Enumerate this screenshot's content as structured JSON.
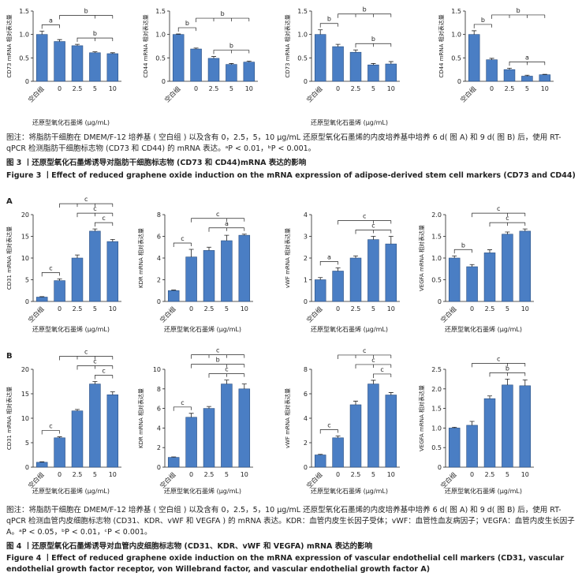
{
  "chart_data": [
    {
      "type": "bar",
      "ylabel": "CD73 mRNA 相对表达量",
      "xlabel": "还原型氧化石墨烯 (μg/mL)",
      "categories": [
        "空白组",
        "0",
        "2.5",
        "5",
        "10"
      ],
      "values": [
        1.0,
        0.85,
        0.76,
        0.61,
        0.59
      ],
      "errors": [
        0.07,
        0.04,
        0.03,
        0.02,
        0.02
      ],
      "color": "#4a7ec4",
      "ylim": [
        0,
        1.5
      ],
      "yticks": [
        0,
        0.5,
        {
          "value": 1,
          "label": "1.0"
        },
        1.5
      ],
      "annotations": [
        {
          "text": "a",
          "from": 0,
          "to": [
            1
          ]
        },
        {
          "text": "b",
          "from": 2,
          "to": [
            3,
            4
          ]
        },
        {
          "text": "b",
          "from": 1,
          "to": [
            3,
            4
          ]
        }
      ]
    },
    {
      "type": "bar",
      "ylabel": "CD44 mRNA 相对表达量",
      "categories": [
        "空白组",
        "0",
        "2.5",
        "5",
        "10"
      ],
      "values": [
        1.0,
        0.69,
        0.49,
        0.36,
        0.41
      ],
      "errors": [
        0.01,
        0.02,
        0.04,
        0.02,
        0.02
      ],
      "color": "#4a7ec4",
      "ylim": [
        0,
        1.5
      ],
      "yticks": [
        0,
        0.5,
        {
          "value": 1,
          "label": "1.0"
        },
        1.5
      ],
      "annotations": [
        {
          "text": "b",
          "from": 0,
          "to": [
            1
          ]
        },
        {
          "text": "b",
          "from": 2,
          "to": [
            3,
            4
          ]
        },
        {
          "text": "b",
          "from": 1,
          "to": [
            2,
            3,
            4
          ]
        }
      ]
    },
    {
      "type": "bar",
      "ylabel": "CD73 mRNA 相对表达量",
      "xlabel": "还原型氧化石墨烯 (μg/mL)",
      "categories": [
        "空白组",
        "0",
        "2.5",
        "5",
        "10"
      ],
      "values": [
        1.0,
        0.74,
        0.62,
        0.35,
        0.37
      ],
      "errors": [
        0.1,
        0.05,
        0.05,
        0.03,
        0.05
      ],
      "color": "#4a7ec4",
      "ylim": [
        0,
        1.5
      ],
      "yticks": [
        0,
        0.5,
        {
          "value": 1,
          "label": "1.0"
        },
        1.5
      ],
      "annotations": [
        {
          "text": "b",
          "from": 0,
          "to": [
            1
          ]
        },
        {
          "text": "b",
          "from": 2,
          "to": [
            3,
            4
          ]
        },
        {
          "text": "b",
          "from": 1,
          "to": [
            2,
            3,
            4
          ]
        }
      ]
    },
    {
      "type": "bar",
      "ylabel": "CD44 mRNA 相对表达量",
      "categories": [
        "空白组",
        "0",
        "2.5",
        "5",
        "10"
      ],
      "values": [
        1.0,
        0.46,
        0.25,
        0.11,
        0.14
      ],
      "errors": [
        0.08,
        0.03,
        0.03,
        0.02,
        0.01
      ],
      "color": "#4a7ec4",
      "ylim": [
        0,
        1.5
      ],
      "yticks": [
        0,
        0.5,
        {
          "value": 1,
          "label": "1.0"
        },
        1.5
      ],
      "annotations": [
        {
          "text": "b",
          "from": 0,
          "to": [
            1
          ]
        },
        {
          "text": "a",
          "from": 2,
          "to": [
            3,
            4
          ]
        },
        {
          "text": "b",
          "from": 1,
          "to": [
            2,
            3,
            4
          ]
        }
      ]
    },
    {
      "type": "bar",
      "ylabel": "CD31 mRNA 相对表达量",
      "xlabel": "还原型氧化石墨烯 (μg/mL)",
      "categories": [
        "空白组",
        "0",
        "2.5",
        "5",
        "10"
      ],
      "values": [
        1.0,
        4.8,
        10,
        16.2,
        13.8
      ],
      "errors": [
        0.1,
        0.4,
        0.7,
        0.5,
        0.5
      ],
      "color": "#4a7ec4",
      "ylim": [
        0,
        20
      ],
      "yticks": [
        0,
        5,
        10,
        15,
        20
      ],
      "annotations": [
        {
          "text": "c",
          "from": 0,
          "to": [
            1
          ]
        },
        {
          "text": "c",
          "from": 3,
          "to": [
            4
          ]
        },
        {
          "text": "c",
          "from": 2,
          "to": [
            3,
            4
          ]
        },
        {
          "text": "c",
          "from": 1,
          "to": [
            2,
            3,
            4
          ]
        }
      ]
    },
    {
      "type": "bar",
      "ylabel": "KDR mRNA 相对表达量",
      "xlabel": "还原型氧化石墨烯 (μg/mL)",
      "categories": [
        "空白组",
        "0",
        "2.5",
        "5",
        "10"
      ],
      "values": [
        1.0,
        4.1,
        4.7,
        5.6,
        6.1
      ],
      "errors": [
        0.05,
        0.7,
        0.3,
        0.5,
        0.1
      ],
      "color": "#4a7ec4",
      "ylim": [
        0,
        8
      ],
      "yticks": [
        0,
        2,
        4,
        6,
        8
      ],
      "annotations": [
        {
          "text": "c",
          "from": 0,
          "to": [
            1
          ]
        },
        {
          "text": "a",
          "from": 2,
          "to": [
            3,
            4
          ]
        },
        {
          "text": "c",
          "from": 1,
          "to": [
            3,
            4
          ]
        }
      ]
    },
    {
      "type": "bar",
      "ylabel": "vWF mRNA 相对表达量",
      "xlabel": "还原型氧化石墨烯 (μg/mL)",
      "categories": [
        "空白组",
        "0",
        "2.5",
        "5",
        "10"
      ],
      "values": [
        1.0,
        1.4,
        2.0,
        2.85,
        2.65
      ],
      "errors": [
        0.1,
        0.15,
        0.1,
        0.15,
        0.35
      ],
      "color": "#4a7ec4",
      "ylim": [
        0,
        4
      ],
      "yticks": [
        0,
        1,
        2,
        3,
        4
      ],
      "annotations": [
        {
          "text": "a",
          "from": 0,
          "to": [
            1
          ]
        },
        {
          "text": "c",
          "from": 2,
          "to": [
            3,
            4
          ]
        },
        {
          "text": "c",
          "from": 1,
          "to": [
            3,
            4
          ]
        }
      ]
    },
    {
      "type": "bar",
      "ylabel": "VEGFA mRNA 相对表达量",
      "xlabel": "还原型氧化石墨烯 (μg/mL)",
      "categories": [
        "空白组",
        "0",
        "2.5",
        "5",
        "10"
      ],
      "values": [
        1.0,
        0.8,
        1.12,
        1.55,
        1.62
      ],
      "errors": [
        0.05,
        0.05,
        0.07,
        0.05,
        0.05
      ],
      "color": "#4a7ec4",
      "ylim": [
        0,
        2
      ],
      "yticks": [
        0,
        0.5,
        {
          "value": 1,
          "label": "1.0"
        },
        1.5,
        {
          "value": 2,
          "label": "2.0"
        }
      ],
      "annotations": [
        {
          "text": "b",
          "from": 0,
          "to": [
            1
          ]
        },
        {
          "text": "c",
          "from": 2,
          "to": [
            3,
            4
          ]
        },
        {
          "text": "c",
          "from": 1,
          "to": [
            3,
            4
          ]
        }
      ]
    },
    {
      "type": "bar",
      "ylabel": "CD31 mRNA 相对表达量",
      "xlabel": "还原型氧化石墨烯 (μg/mL)",
      "categories": [
        "空白组",
        "0",
        "2.5",
        "5",
        "10"
      ],
      "values": [
        1.0,
        6.0,
        11.5,
        17.0,
        14.8
      ],
      "errors": [
        0.1,
        0.2,
        0.3,
        0.5,
        0.6
      ],
      "color": "#4a7ec4",
      "ylim": [
        0,
        20
      ],
      "yticks": [
        0,
        5,
        10,
        15,
        20
      ],
      "annotations": [
        {
          "text": "c",
          "from": 0,
          "to": [
            1
          ]
        },
        {
          "text": "c",
          "from": 3,
          "to": [
            4
          ]
        },
        {
          "text": "c",
          "from": 2,
          "to": [
            3,
            4
          ]
        },
        {
          "text": "c",
          "from": 1,
          "to": [
            2,
            3,
            4
          ]
        }
      ]
    },
    {
      "type": "bar",
      "ylabel": "KDR mRNA 相对表达量",
      "xlabel": "还原型氧化石墨烯 (μg/mL)",
      "categories": [
        "空白组",
        "0",
        "2.5",
        "5",
        "10"
      ],
      "values": [
        1.0,
        5.1,
        6.0,
        8.5,
        8.0
      ],
      "errors": [
        0.05,
        0.4,
        0.2,
        0.4,
        0.5
      ],
      "color": "#4a7ec4",
      "ylim": [
        0,
        10
      ],
      "yticks": [
        0,
        2,
        4,
        6,
        8,
        10
      ],
      "annotations": [
        {
          "text": "c",
          "from": 0,
          "to": [
            1
          ]
        },
        {
          "text": "c",
          "from": 2,
          "to": [
            3,
            4
          ]
        },
        {
          "text": "b",
          "from": 1,
          "to": [
            3,
            4
          ]
        },
        {
          "text": "c",
          "from": 1,
          "to": [
            2,
            3,
            4
          ]
        }
      ]
    },
    {
      "type": "bar",
      "ylabel": "vWF mRNA 相对表达量",
      "xlabel": "还原型氧化石墨烯 (μg/mL)",
      "categories": [
        "空白组",
        "0",
        "2.5",
        "5",
        "10"
      ],
      "values": [
        1.0,
        2.4,
        5.1,
        6.8,
        5.9
      ],
      "errors": [
        0.05,
        0.15,
        0.3,
        0.3,
        0.2
      ],
      "color": "#4a7ec4",
      "ylim": [
        0,
        8
      ],
      "yticks": [
        0,
        2,
        4,
        6,
        8
      ],
      "annotations": [
        {
          "text": "c",
          "from": 0,
          "to": [
            1
          ]
        },
        {
          "text": "c",
          "from": 3,
          "to": [
            4
          ]
        },
        {
          "text": "c",
          "from": 2,
          "to": [
            3,
            4
          ]
        },
        {
          "text": "c",
          "from": 1,
          "to": [
            2,
            3,
            4
          ]
        }
      ]
    },
    {
      "type": "bar",
      "ylabel": "VEGFA mRNA 相对表达量",
      "xlabel": "还原型氧化石墨烯 (μg/mL)",
      "categories": [
        "空白组",
        "0",
        "2.5",
        "5",
        "10"
      ],
      "values": [
        1.0,
        1.07,
        1.75,
        2.1,
        2.08
      ],
      "errors": [
        0.02,
        0.1,
        0.07,
        0.15,
        0.15
      ],
      "color": "#4a7ec4",
      "ylim": [
        0,
        2.5
      ],
      "yticks": [
        0,
        0.5,
        {
          "value": 1,
          "label": "1.0"
        },
        1.5,
        {
          "value": 2,
          "label": "2.0"
        },
        2.5
      ],
      "annotations": [
        {
          "text": "b",
          "from": 2,
          "to": [
            3,
            4
          ]
        },
        {
          "text": "c",
          "from": 1,
          "to": [
            3,
            4
          ]
        }
      ]
    }
  ],
  "panel_labels": [
    "A",
    "B"
  ],
  "figure3": {
    "caption": "图注：将脂肪干细胞在 DMEM/F-12 培养基 ( 空白组 ) 以及含有 0，2.5，5，10 μg/mL 还原型氧化石墨烯的内皮培养基中培养 6 d( 图 A) 和 9 d( 图 B) 后，使用 RT-qPCR 检测脂肪干细胞标志物 (CD73 和 CD44) 的 mRNA 表达。ᵃP < 0.01，ᵇP < 0.001。",
    "title_cn": "图 3 丨还原型氧化石墨烯诱导对脂肪干细胞标志物 (CD73 和 CD44)mRNA 表达的影响",
    "title_en": "Figure 3 丨Effect of reduced graphene oxide induction on the mRNA expression of adipose-derived stem cell markers (CD73 and CD44)"
  },
  "figure4": {
    "caption": "图注：将脂肪干细胞在 DMEM/F-12 培养基 ( 空白组 ) 以及含有 0，2.5，5，10 μg/mL 还原型氧化石墨烯的内皮培养基中培养 6 d( 图 A) 和 9 d( 图 B) 后，使用 RT-qPCR 检测血管内皮细胞标志物 (CD31、KDR、vWF 和 VEGFA ) 的 mRNA 表达。KDR：血管内皮生长因子受体；vWF：血管性血友病因子；VEGFA：血管内皮生长因子 A。ᵃP < 0.05，ᵇP < 0.01，ᶜP < 0.001。",
    "title_cn": "图 4 丨还原型氧化石墨烯诱导对血管内皮细胞标志物 (CD31、KDR、vWF 和 VEGFA) mRNA 表达的影响",
    "title_en": "Figure 4 丨Effect of reduced graphene oxide induction on the mRNA expression of vascular endothelial cell markers (CD31, vascular endothelial growth factor receptor, von Willebrand factor, and vascular endothelial growth factor A)"
  }
}
